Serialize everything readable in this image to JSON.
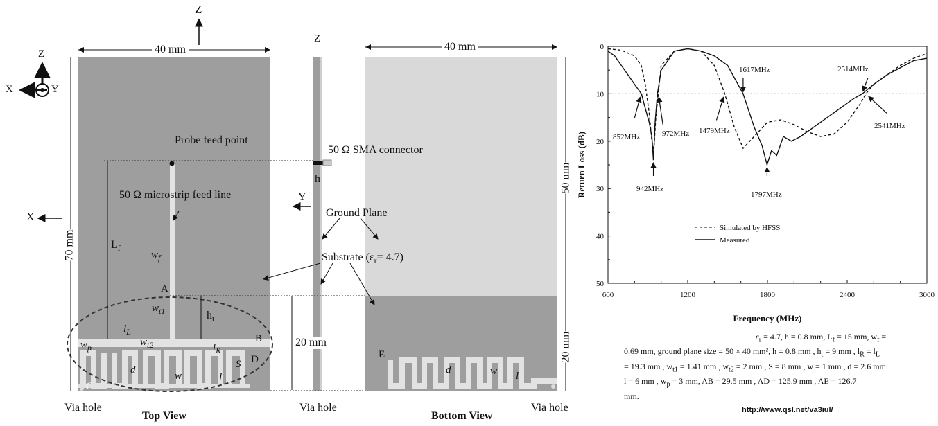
{
  "diagram": {
    "axes": {
      "z_top": "Z",
      "z_mid": "Z",
      "x_corner": "X",
      "y_corner": "Y",
      "z_corner": "Z",
      "x_left": "X",
      "y_mid": "Y"
    },
    "dimensions": {
      "width_top": "40 mm",
      "width_bottom": "40 mm",
      "height_left": "70 mm",
      "height_right_top": "50 mm",
      "height_right_bottom": "20 mm",
      "height_mid": "20 mm"
    },
    "labels": {
      "probe_feed": "Probe feed point",
      "sma": "50 Ω SMA connector",
      "microstrip": "50 Ω microstrip feed line",
      "ground_plane": "Ground Plane",
      "substrate": "Substrate (ε",
      "substrate_sub": "r",
      "substrate_end": "= 4.7)",
      "Lf": "L",
      "Lf_sub": "f",
      "wf": "w",
      "wf_sub": "f",
      "wt1": "w",
      "wt1_sub": "t1",
      "wt2": "w",
      "wt2_sub": "t2",
      "ht": "h",
      "ht_sub": "t",
      "lL": "l",
      "lL_sub": "L",
      "lR": "l",
      "lR_sub": "R",
      "wp": "w",
      "wp_sub": "p",
      "h": "h",
      "d": "d",
      "w": "w",
      "l": "l",
      "S": "S",
      "A": "A",
      "B": "B",
      "C": "C",
      "D": "D",
      "E": "E",
      "via_left": "Via hole",
      "via_mid": "Via hole",
      "via_right": "Via hole",
      "top_view": "Top View",
      "bottom_view": "Bottom View"
    }
  },
  "chart_data": {
    "type": "line",
    "xlabel": "Frequency (MHz)",
    "ylabel": "Return Loss (dB)",
    "xlim": [
      600,
      3000
    ],
    "ylim": [
      0,
      50
    ],
    "y_inverted": true,
    "x_ticks": [
      "600",
      "1200",
      "1800",
      "2400",
      "3000"
    ],
    "y_ticks": [
      "0",
      "10",
      "20",
      "30",
      "40",
      "50"
    ],
    "threshold_line": 10,
    "legend": [
      "Simulated by HFSS",
      "Measured"
    ],
    "legend_position": "lower-left",
    "series": [
      {
        "name": "Simulated by HFSS",
        "style": "dashed",
        "x": [
          600,
          700,
          800,
          850,
          880,
          910,
          930,
          945,
          960,
          1000,
          1100,
          1200,
          1300,
          1400,
          1479,
          1550,
          1617,
          1700,
          1800,
          1900,
          2000,
          2100,
          2200,
          2300,
          2400,
          2500,
          2541,
          2600,
          2700,
          2800,
          2900,
          3000
        ],
        "y": [
          0.5,
          0.8,
          2,
          4,
          8,
          14,
          20,
          22,
          15,
          4,
          1,
          0.5,
          1,
          4,
          10,
          17,
          21.5,
          19,
          16,
          15.5,
          16.5,
          18,
          19,
          18.5,
          16,
          12,
          10,
          8,
          6,
          4,
          2.5,
          1.5
        ]
      },
      {
        "name": "Measured",
        "style": "solid",
        "x": [
          600,
          650,
          700,
          750,
          800,
          852,
          870,
          890,
          910,
          930,
          942,
          955,
          972,
          1000,
          1100,
          1200,
          1300,
          1400,
          1500,
          1617,
          1700,
          1760,
          1797,
          1830,
          1870,
          1920,
          1980,
          2050,
          2150,
          2250,
          2350,
          2450,
          2514,
          2600,
          2700,
          2800,
          2900,
          3000
        ],
        "y": [
          1,
          2,
          4,
          6,
          8,
          10,
          12,
          14,
          16,
          19,
          24,
          16,
          10,
          5,
          1,
          0.5,
          1,
          2,
          4,
          10,
          17,
          21,
          25,
          22,
          23,
          19,
          20,
          19,
          17,
          15,
          13,
          11,
          10,
          8,
          6,
          4.5,
          3,
          2.5
        ]
      }
    ],
    "annotations": [
      "852MHz",
      "942MHz",
      "972MHz",
      "1479MHz",
      "1617MHz",
      "1797MHz",
      "2514MHz",
      "2541MHz"
    ]
  },
  "params": {
    "line1": "ε",
    "line1_sub": "r",
    "line1_rest": " = 4.7, h = 0.8 mm, L",
    "line1_sub2": "f",
    "line1_rest2": " = 15 mm, w",
    "line1_sub3": "f",
    "line1_rest3": " =",
    "line2": "0.69 mm, ground plane size = 50 × 40 mm², h = 0.8 mm , h",
    "line2_sub": "t",
    "line2_rest": " = 9 mm , l",
    "line2_sub2": "R",
    "line2_rest2": " = l",
    "line2_sub3": "L",
    "line3": "= 19.3 mm , w",
    "line3_sub": "t1",
    "line3_rest": " = 1.41 mm , w",
    "line3_sub2": "t2",
    "line3_rest2": " = 2 mm , S = 8 mm , w = 1 mm , d = 2.6 mm",
    "line4": "l = 6 mm , w",
    "line4_sub": "p",
    "line4_rest": " = 3 mm, AB = 29.5 mm , AD = 125.9 mm , AE = 126.7",
    "line5": "mm.",
    "url": "http://www.qsl.net/va3iul/"
  }
}
